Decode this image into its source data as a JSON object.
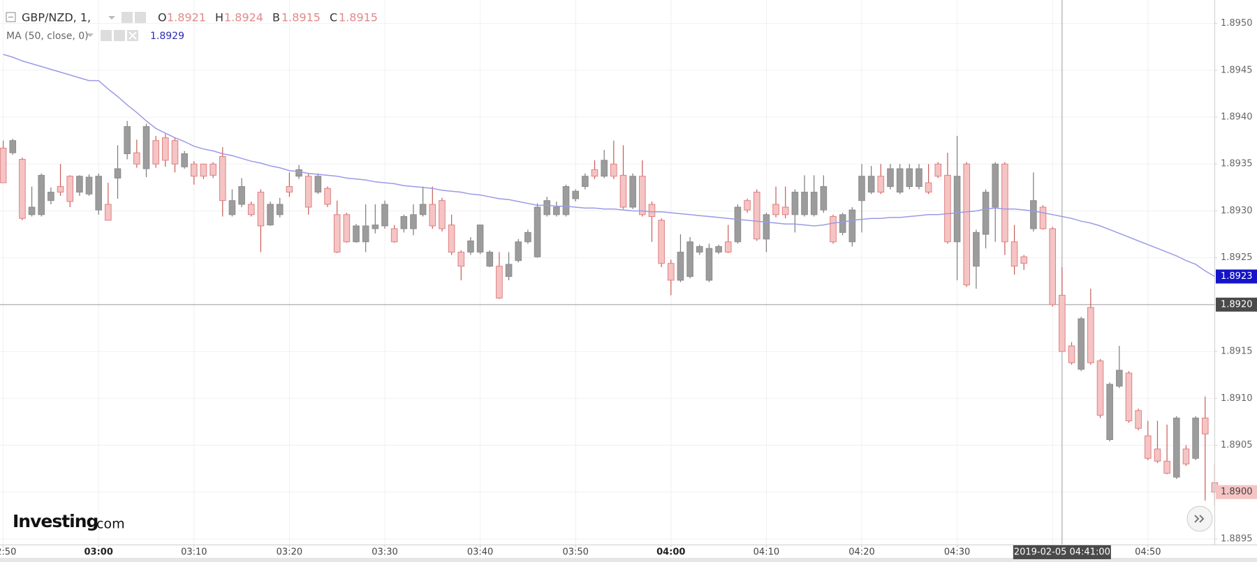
{
  "chart_data": {
    "type": "candlestick",
    "symbol": "GBP/NZD, 1,",
    "ohlc_legend": [
      {
        "label": "O",
        "value": 1.8921
      },
      {
        "label": "H",
        "value": 1.8924
      },
      {
        "label": "B",
        "value": 1.8915
      },
      {
        "label": "C",
        "value": 1.8915
      }
    ],
    "up_color": "#9c9c9c",
    "down_color": "#f5c4c4",
    "categories": [
      "02:50",
      "02:51",
      "02:52",
      "02:53",
      "02:54",
      "02:55",
      "02:56",
      "02:57",
      "02:58",
      "02:59",
      "03:00",
      "03:01",
      "03:02",
      "03:03",
      "03:04",
      "03:05",
      "03:06",
      "03:07",
      "03:08",
      "03:09",
      "03:10",
      "03:11",
      "03:12",
      "03:13",
      "03:14",
      "03:15",
      "03:16",
      "03:17",
      "03:18",
      "03:19",
      "03:20",
      "03:21",
      "03:22",
      "03:23",
      "03:24",
      "03:25",
      "03:26",
      "03:27",
      "03:28",
      "03:29",
      "03:30",
      "03:31",
      "03:32",
      "03:33",
      "03:34",
      "03:35",
      "03:36",
      "03:37",
      "03:38",
      "03:39",
      "03:40",
      "03:41",
      "03:42",
      "03:43",
      "03:44",
      "03:45",
      "03:46",
      "03:47",
      "03:48",
      "03:49",
      "03:50",
      "03:51",
      "03:52",
      "03:53",
      "03:54",
      "03:55",
      "03:56",
      "03:57",
      "03:58",
      "03:59",
      "04:00",
      "04:01",
      "04:02",
      "04:03",
      "04:04",
      "04:05",
      "04:06",
      "04:07",
      "04:08",
      "04:09",
      "04:10",
      "04:11",
      "04:12",
      "04:13",
      "04:14",
      "04:15",
      "04:16",
      "04:17",
      "04:18",
      "04:19",
      "04:20",
      "04:21",
      "04:22",
      "04:23",
      "04:24",
      "04:25",
      "04:26",
      "04:27",
      "04:28",
      "04:29",
      "04:30",
      "04:31",
      "04:32",
      "04:33",
      "04:34",
      "04:35",
      "04:36",
      "04:37",
      "04:38",
      "04:39",
      "04:40",
      "04:41",
      "04:42",
      "04:43",
      "04:44",
      "04:45",
      "04:46",
      "04:47",
      "04:48",
      "04:49",
      "04:50",
      "04:51",
      "04:52",
      "04:53",
      "04:54",
      "04:55",
      "04:56",
      "04:57"
    ],
    "open": [
      1.89367,
      1.89362,
      1.89355,
      1.89296,
      1.89296,
      1.89311,
      1.89326,
      1.89337,
      1.8932,
      1.89318,
      1.89301,
      1.89307,
      1.89335,
      1.89361,
      1.89362,
      1.89345,
      1.89375,
      1.89378,
      1.89375,
      1.89347,
      1.8935,
      1.8935,
      1.8935,
      1.89358,
      1.89296,
      1.89307,
      1.89307,
      1.8932,
      1.89285,
      1.89296,
      1.89326,
      1.89337,
      1.89337,
      1.8932,
      1.89324,
      1.89296,
      1.89296,
      1.89267,
      1.89267,
      1.89281,
      1.89284,
      1.89281,
      1.89281,
      1.89281,
      1.89296,
      1.89307,
      1.89311,
      1.89285,
      1.89256,
      1.89256,
      1.89256,
      1.89241,
      1.89241,
      1.8923,
      1.89247,
      1.89267,
      1.89251,
      1.89296,
      1.89296,
      1.89296,
      1.89313,
      1.89326,
      1.89344,
      1.89337,
      1.8935,
      1.89338,
      1.89304,
      1.89337,
      1.89307,
      1.8929,
      1.89244,
      1.89226,
      1.8923,
      1.89256,
      1.89226,
      1.89256,
      1.89267,
      1.89267,
      1.89311,
      1.8932,
      1.8927,
      1.89307,
      1.89304,
      1.89296,
      1.89296,
      1.89296,
      1.89301,
      1.89294,
      1.89277,
      1.89267,
      1.89311,
      1.8932,
      1.89337,
      1.89326,
      1.8932,
      1.89326,
      1.89326,
      1.8933,
      1.8935,
      1.89338,
      1.89267,
      1.8935,
      1.89241,
      1.89275,
      1.89304,
      1.8935,
      1.89267,
      1.89251,
      1.89281,
      1.89304,
      1.89281,
      1.8921,
      1.89156,
      1.89131,
      1.89197,
      1.8914,
      1.89056,
      1.89113,
      1.89127,
      1.89087,
      1.8906,
      1.89046,
      1.89033,
      1.89016,
      1.89046,
      1.89036,
      1.89079,
      1.8901
    ],
    "high": [
      1.89375,
      1.89377,
      1.89357,
      1.89326,
      1.8934,
      1.89325,
      1.8935,
      1.89338,
      1.89338,
      1.89339,
      1.8934,
      1.8933,
      1.8937,
      1.89396,
      1.89376,
      1.89393,
      1.8938,
      1.89382,
      1.89378,
      1.89364,
      1.89353,
      1.8935,
      1.89352,
      1.89368,
      1.89323,
      1.89335,
      1.8931,
      1.89323,
      1.8931,
      1.89314,
      1.89341,
      1.89349,
      1.8934,
      1.8934,
      1.89326,
      1.89311,
      1.89298,
      1.89286,
      1.89307,
      1.89307,
      1.89311,
      1.89285,
      1.89296,
      1.89307,
      1.89326,
      1.89326,
      1.89314,
      1.89296,
      1.89258,
      1.89272,
      1.89285,
      1.89258,
      1.89256,
      1.89256,
      1.8927,
      1.8928,
      1.89308,
      1.89315,
      1.8931,
      1.89328,
      1.89323,
      1.8934,
      1.89354,
      1.89365,
      1.89375,
      1.8937,
      1.8934,
      1.89354,
      1.8931,
      1.89292,
      1.89248,
      1.89275,
      1.89272,
      1.89264,
      1.89265,
      1.89264,
      1.89285,
      1.89307,
      1.89313,
      1.89323,
      1.89298,
      1.89326,
      1.89326,
      1.89323,
      1.89338,
      1.89338,
      1.89338,
      1.89296,
      1.89298,
      1.89304,
      1.8935,
      1.89348,
      1.8935,
      1.8935,
      1.8935,
      1.8935,
      1.8935,
      1.8935,
      1.89352,
      1.89362,
      1.8938,
      1.89352,
      1.8928,
      1.89323,
      1.89352,
      1.89352,
      1.89285,
      1.89253,
      1.89341,
      1.89306,
      1.89283,
      1.8924,
      1.8916,
      1.89187,
      1.89217,
      1.89142,
      1.89117,
      1.89156,
      1.89129,
      1.89089,
      1.89076,
      1.89076,
      1.89072,
      1.89081,
      1.8905,
      1.89081,
      1.89102,
      1.8903
    ],
    "low": [
      1.8933,
      1.8936,
      1.8929,
      1.89294,
      1.89294,
      1.89307,
      1.89316,
      1.89304,
      1.89316,
      1.89316,
      1.89296,
      1.8929,
      1.89313,
      1.89355,
      1.89346,
      1.89336,
      1.89346,
      1.89347,
      1.89341,
      1.89345,
      1.89328,
      1.89334,
      1.89335,
      1.89294,
      1.89294,
      1.89304,
      1.89294,
      1.89256,
      1.89284,
      1.89293,
      1.89315,
      1.89334,
      1.89296,
      1.89318,
      1.89304,
      1.89255,
      1.89266,
      1.89266,
      1.89256,
      1.89276,
      1.89281,
      1.89266,
      1.89277,
      1.89274,
      1.89294,
      1.89281,
      1.89278,
      1.89253,
      1.89226,
      1.89253,
      1.89254,
      1.8924,
      1.89206,
      1.89226,
      1.89245,
      1.89265,
      1.8925,
      1.89294,
      1.89294,
      1.89294,
      1.8931,
      1.89323,
      1.89334,
      1.89335,
      1.89334,
      1.89302,
      1.89302,
      1.89294,
      1.89267,
      1.8924,
      1.8921,
      1.89224,
      1.89228,
      1.89253,
      1.89224,
      1.89254,
      1.89255,
      1.89265,
      1.89298,
      1.89268,
      1.89256,
      1.89293,
      1.89292,
      1.89277,
      1.89294,
      1.89294,
      1.89298,
      1.89265,
      1.89274,
      1.89262,
      1.89277,
      1.89318,
      1.89318,
      1.89323,
      1.89318,
      1.89323,
      1.89323,
      1.89318,
      1.89335,
      1.89265,
      1.89226,
      1.89219,
      1.89217,
      1.8926,
      1.89267,
      1.89253,
      1.89232,
      1.89237,
      1.89278,
      1.8928,
      1.89198,
      1.8915,
      1.89136,
      1.89129,
      1.89136,
      1.89079,
      1.89054,
      1.89111,
      1.89074,
      1.89066,
      1.89034,
      1.89031,
      1.89019,
      1.89014,
      1.89028,
      1.89034,
      1.88991,
      1.88985
    ],
    "close": [
      1.8933,
      1.89375,
      1.89292,
      1.89304,
      1.89338,
      1.8932,
      1.8932,
      1.8931,
      1.89337,
      1.89336,
      1.89337,
      1.8929,
      1.89345,
      1.8939,
      1.8935,
      1.8939,
      1.8935,
      1.89354,
      1.8935,
      1.89361,
      1.89337,
      1.89337,
      1.89338,
      1.89311,
      1.89311,
      1.89326,
      1.89296,
      1.89284,
      1.89307,
      1.89307,
      1.8932,
      1.89344,
      1.89304,
      1.89337,
      1.89307,
      1.89256,
      1.89267,
      1.89284,
      1.89284,
      1.89285,
      1.89307,
      1.89267,
      1.89294,
      1.89296,
      1.89307,
      1.89284,
      1.89281,
      1.89256,
      1.89241,
      1.89268,
      1.89285,
      1.89256,
      1.89207,
      1.89243,
      1.89267,
      1.89277,
      1.89304,
      1.89311,
      1.89304,
      1.89326,
      1.89321,
      1.89337,
      1.89337,
      1.89354,
      1.89337,
      1.89304,
      1.89337,
      1.89296,
      1.89294,
      1.89244,
      1.89226,
      1.89256,
      1.89267,
      1.89262,
      1.8926,
      1.89262,
      1.89256,
      1.89304,
      1.89301,
      1.8927,
      1.89296,
      1.89296,
      1.89296,
      1.8932,
      1.8932,
      1.8932,
      1.89326,
      1.89267,
      1.89296,
      1.89301,
      1.89337,
      1.89337,
      1.8932,
      1.89345,
      1.89345,
      1.89345,
      1.89345,
      1.8932,
      1.89337,
      1.89267,
      1.89337,
      1.89221,
      1.89277,
      1.8932,
      1.8935,
      1.89267,
      1.89241,
      1.89244,
      1.89311,
      1.89281,
      1.892,
      1.8915,
      1.89138,
      1.89185,
      1.89138,
      1.89082,
      1.89115,
      1.8913,
      1.89076,
      1.89068,
      1.89036,
      1.89033,
      1.8902,
      1.89079,
      1.8903,
      1.89079,
      1.89062,
      1.89
    ],
    "indicator": {
      "name": "MA (50, close, 0)",
      "value": 1.8929,
      "color": "#9a9ae6",
      "label_color": "#2b2bb5",
      "values": [
        1.89467,
        1.89464,
        1.8946,
        1.89457,
        1.89454,
        1.89451,
        1.89448,
        1.89445,
        1.89442,
        1.89439,
        1.89439,
        1.8943,
        1.89422,
        1.89413,
        1.89405,
        1.89396,
        1.89388,
        1.89383,
        1.89378,
        1.89374,
        1.89369,
        1.89366,
        1.89364,
        1.89361,
        1.89359,
        1.89356,
        1.89353,
        1.89351,
        1.89348,
        1.89346,
        1.89343,
        1.89342,
        1.8934,
        1.89339,
        1.89338,
        1.89337,
        1.89335,
        1.89334,
        1.89333,
        1.89331,
        1.8933,
        1.89329,
        1.89327,
        1.89326,
        1.89325,
        1.89324,
        1.89322,
        1.89321,
        1.8932,
        1.89318,
        1.89317,
        1.89315,
        1.89313,
        1.89312,
        1.8931,
        1.89308,
        1.89306,
        1.89306,
        1.89305,
        1.89305,
        1.89304,
        1.89303,
        1.89303,
        1.89302,
        1.89302,
        1.89301,
        1.893,
        1.893,
        1.89299,
        1.89299,
        1.89298,
        1.89297,
        1.89296,
        1.89295,
        1.89294,
        1.89293,
        1.89292,
        1.89291,
        1.8929,
        1.89289,
        1.89288,
        1.89287,
        1.89286,
        1.89286,
        1.89285,
        1.89284,
        1.89285,
        1.89287,
        1.89288,
        1.8929,
        1.89291,
        1.89292,
        1.89292,
        1.89293,
        1.89293,
        1.89294,
        1.89295,
        1.89296,
        1.89296,
        1.89297,
        1.89298,
        1.89299,
        1.893,
        1.89302,
        1.89303,
        1.89302,
        1.89302,
        1.89301,
        1.893,
        1.89298,
        1.89296,
        1.89294,
        1.89292,
        1.89289,
        1.89287,
        1.89284,
        1.8928,
        1.89276,
        1.89272,
        1.89268,
        1.89264,
        1.8926,
        1.89256,
        1.89252,
        1.89247,
        1.89243,
        1.89236,
        1.8923
      ]
    },
    "ylim": [
      1.88944,
      1.89525
    ],
    "yticks": [
      {
        "value": 1.895,
        "label": "1.8950"
      },
      1.8945,
      {
        "value": 1.894,
        "label": "1.8940"
      },
      1.8935,
      {
        "value": 1.893,
        "label": "1.8930"
      },
      1.8925,
      {
        "value": 1.892,
        "label": "1.8920"
      },
      1.8915,
      {
        "value": 1.891,
        "label": "1.8910"
      },
      1.8905,
      {
        "value": 1.89,
        "label": "1.8900"
      },
      1.8895
    ],
    "xticks": [
      "02:50",
      "03:00",
      "03:10",
      "03:20",
      "03:30",
      "03:40",
      "03:50",
      "04:00",
      "04:10",
      "04:20",
      "04:30",
      "04:40",
      "04:50"
    ],
    "grid": true,
    "ma_tag": 1.8923,
    "last_price_tag": {
      "value": 1.89,
      "label": "1.8900"
    },
    "crosshair": {
      "x": "04:41",
      "x_label": "2019-02-05 04:41:00",
      "y": {
        "value": 1.892,
        "label": "1.8920"
      }
    },
    "logo": {
      "brand": "Investing",
      "suffix": ".com"
    }
  }
}
